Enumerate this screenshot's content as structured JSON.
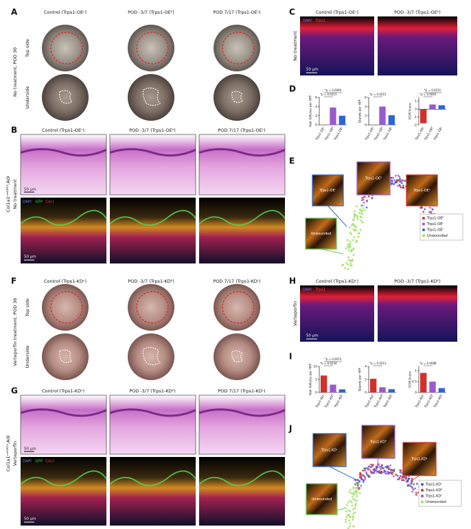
{
  "A": {
    "label": "A",
    "columns": [
      "Control (Trps1-OEᶜ)",
      "POD -3/7 (Trps1-OEᴱ)",
      "POD 7/17 (Trps1-OEᴸ)"
    ],
    "side": "No treatment, POD 30",
    "rows": [
      "Top side",
      "Underside"
    ]
  },
  "B": {
    "label": "B",
    "columns": [
      "Control (Trps1-OEᶜ)",
      "POD -3/7 (Trps1-OEᴱ)",
      "POD 7/17 (Trps1-OEᴸ)"
    ],
    "side": [
      "Col1a1ᶜʳᵉᴱᴿᵀ²;Ai9",
      "No treatment"
    ],
    "stains": [
      {
        "name": "DAPI",
        "color": "#6f8cff"
      },
      {
        "name": "GFP",
        "color": "#4cd14c"
      },
      {
        "name": "Col-I",
        "color": "#ff4a4a"
      }
    ],
    "scale_bars": [
      "50 μm",
      "50 μm"
    ]
  },
  "C": {
    "label": "C",
    "columns": [
      "Control (Trps1-OEᶜ)",
      "POD -3/7 (Trps1-OEᴱ)"
    ],
    "stains": [
      {
        "name": "DAPI",
        "color": "#6f8cff"
      },
      {
        "name": "Trps1",
        "color": "#ff4a4a"
      }
    ],
    "side": "No treatment",
    "scale_bar": "50 μm"
  },
  "D": {
    "label": "D",
    "charts": [
      {
        "type": "bar",
        "ylabel": "Hair follicles per HPF",
        "categories": [
          "Trps1-OEᶜ",
          "Trps1-OEᴱ",
          "Trps1-OEᴸ"
        ],
        "values": [
          0,
          3.8,
          2
        ],
        "colors": [
          "#d0312d",
          "#9b59d0",
          "#2f63d8"
        ],
        "ylim": [
          0,
          6
        ],
        "yticks": [
          0,
          2,
          4,
          6
        ],
        "pvalues": [
          "*p = 0.0211",
          "*p = 0.0060"
        ]
      },
      {
        "type": "bar",
        "ylabel": "Glands per HPF",
        "categories": [
          "Trps1-OEᶜ",
          "Trps1-OEᴱ",
          "Trps1-OEᴸ"
        ],
        "values": [
          0,
          4,
          2.1
        ],
        "colors": [
          "#d0312d",
          "#9b59d0",
          "#2f63d8"
        ],
        "ylim": [
          0,
          6
        ],
        "yticks": [
          0,
          2,
          4,
          6
        ],
        "pvalues": [
          "*p = 0.0215"
        ]
      },
      {
        "type": "bar",
        "ylabel": "ECM Score",
        "categories": [
          "Trps1-OEᶜ",
          "Trps1-OEᴱ",
          "Trps1-OEᴸ"
        ],
        "values": [
          -1.8,
          0.6,
          0.5
        ],
        "colors": [
          "#d0312d",
          "#9b59d0",
          "#2f63d8"
        ],
        "ylim": [
          -2,
          1.5
        ],
        "yticks": [
          -2,
          -1,
          0,
          1
        ],
        "pvalues": [
          "*p = 0.0001",
          "*p = 0.0211"
        ]
      }
    ]
  },
  "E": {
    "label": "E",
    "insets": [
      {
        "name": "Trps1-OEᶜ",
        "color": "#2f63d8"
      },
      {
        "name": "Trps1-OEᴱ",
        "color": "#9b59d0"
      },
      {
        "name": "Trps1-OEᴸ",
        "color": "#d0312d"
      },
      {
        "name": "Unwounded",
        "color": "#5cc95c"
      }
    ],
    "legend": [
      {
        "name": "Trps1-OEᴱ",
        "color": "#d0312d"
      },
      {
        "name": "Trps1-OEᶜ",
        "color": "#9b59d0"
      },
      {
        "name": "Trps1-OEᴸ",
        "color": "#2f63d8"
      },
      {
        "name": "Unwounded",
        "color": "#9be05c"
      }
    ]
  },
  "F": {
    "label": "F",
    "columns": [
      "Control (Trps1-KDᶜ)",
      "POD -3/7 (Trps1-KDᴱ)",
      "POD 7/17 (Trps1-KDᴸ)"
    ],
    "side": "Verteporfin treatment, POD 30",
    "rows": [
      "Top side",
      "Underside"
    ]
  },
  "G": {
    "label": "G",
    "columns": [
      "Control (Trps1-KDᶜ)",
      "POD -3/7 (Trps1-KDᴱ)",
      "POD 7/17 (Trps1-KDᴸ)"
    ],
    "side": [
      "Col1a1ᶜʳᵉᴱᴿᵀ²;Ai9",
      "Verteporfin"
    ],
    "stains": [
      {
        "name": "DAPI",
        "color": "#6f8cff"
      },
      {
        "name": "GFP",
        "color": "#4cd14c"
      },
      {
        "name": "Col-I",
        "color": "#ff4a4a"
      }
    ],
    "scale_bars": [
      "50 μm",
      "50 μm"
    ]
  },
  "H": {
    "label": "H",
    "columns": [
      "Control (Trps1-KDᶜ)",
      "POD -3/7 (Trps1-KDᴱ)"
    ],
    "stains": [
      {
        "name": "DAPI",
        "color": "#6f8cff"
      },
      {
        "name": "Trps1",
        "color": "#ff4a4a"
      }
    ],
    "side": "Verteporfin",
    "scale_bar": "50 μm"
  },
  "I": {
    "label": "I",
    "charts": [
      {
        "type": "bar",
        "ylabel": "Hair follicles per HPF",
        "categories": [
          "Trps1-KDᶜ",
          "Trps1-KDᴱ",
          "Trps1-KDᴸ"
        ],
        "values": [
          6.5,
          3,
          1.2
        ],
        "colors": [
          "#d0312d",
          "#9b59d0",
          "#2f63d8"
        ],
        "ylim": [
          0,
          10
        ],
        "yticks": [
          0,
          5,
          10
        ],
        "pvalues": [
          "*p = 0.0234",
          "*p = 0.0073"
        ]
      },
      {
        "type": "bar",
        "ylabel": "Glands per HPF",
        "categories": [
          "Trps1-KDᶜ",
          "Trps1-KDᴱ",
          "Trps1-KDᴸ"
        ],
        "values": [
          2.1,
          0.8,
          0.5
        ],
        "colors": [
          "#d0312d",
          "#9b59d0",
          "#2f63d8"
        ],
        "ylim": [
          0,
          4
        ],
        "yticks": [
          0,
          2,
          4
        ],
        "pvalues": [
          "*p = 0.0213"
        ]
      },
      {
        "type": "bar",
        "ylabel": "ECM Score",
        "categories": [
          "Trps1-KDᶜ",
          "Trps1-KDᴱ",
          "Trps1-KDᴸ"
        ],
        "values": [
          0.9,
          0.5,
          0.2
        ],
        "colors": [
          "#d0312d",
          "#9b59d0",
          "#2f63d8"
        ],
        "ylim": [
          0,
          1.2
        ],
        "yticks": [
          0,
          0.5,
          1
        ],
        "pvalues": [
          "*p = 0.0088"
        ]
      }
    ]
  },
  "J": {
    "label": "J",
    "insets": [
      {
        "name": "Trps1-KDᶜ",
        "color": "#2f63d8"
      },
      {
        "name": "Trps1-KDᴱ",
        "color": "#9b59d0"
      },
      {
        "name": "Trps1-KDᴸ",
        "color": "#d0312d"
      },
      {
        "name": "Unwounded",
        "color": "#5cc95c"
      }
    ],
    "legend": [
      {
        "name": "Trps1-KDᶜ",
        "color": "#2f63d8"
      },
      {
        "name": "Trps1-KDᴱ",
        "color": "#d0312d"
      },
      {
        "name": "Trps1-KDᴸ",
        "color": "#9b59d0"
      },
      {
        "name": "Unwounded",
        "color": "#9be05c"
      }
    ]
  }
}
